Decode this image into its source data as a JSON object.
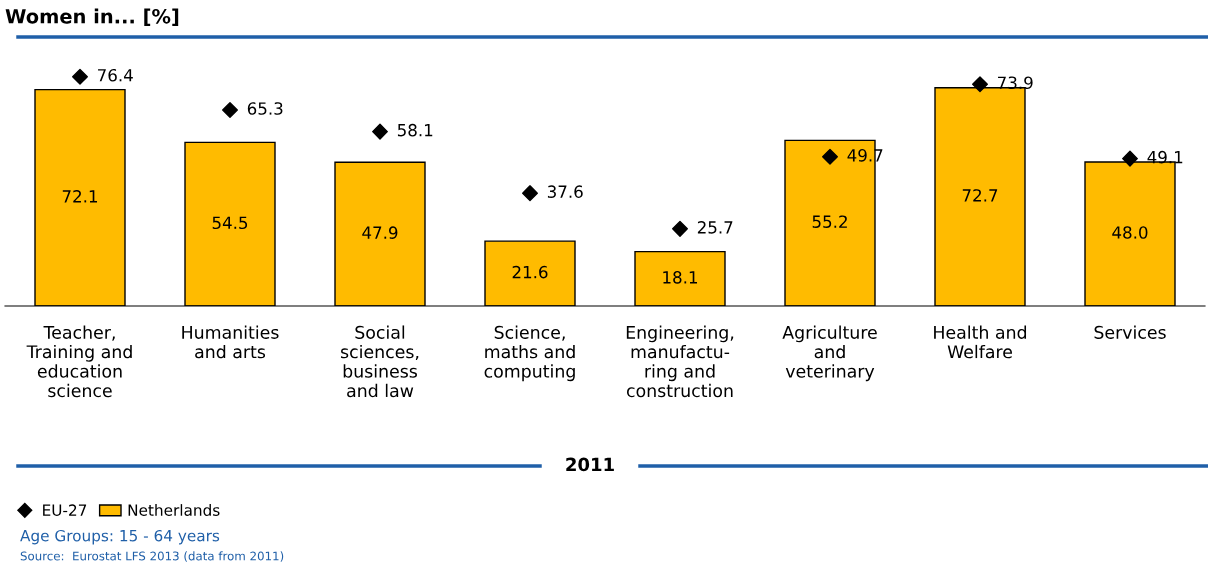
{
  "chart_data": {
    "type": "bar",
    "title": "Women in... [%]",
    "categories": [
      "Teacher,\nTraining and\neducation\nscience",
      "Humanities\nand arts",
      "Social\nsciences,\nbusiness\nand law",
      "Science,\nmaths and\ncomputing",
      "Engineering,\nmanufactu-\nring and\nconstruction",
      "Agriculture\nand\nveterinary",
      "Health and\nWelfare",
      "Services"
    ],
    "series": [
      {
        "name": "Netherlands",
        "color": "#ffbb00",
        "values": [
          72.1,
          54.5,
          47.9,
          21.6,
          18.1,
          55.2,
          72.7,
          48.0
        ],
        "value_labels": [
          "72.1",
          "54.5",
          "47.9",
          "21.6",
          "18.1",
          "55.2",
          "72.7",
          "48.0"
        ]
      },
      {
        "name": "EU-27",
        "type": "scatter",
        "color": "#000000",
        "values": [
          76.4,
          65.3,
          58.1,
          37.6,
          25.7,
          49.7,
          73.9,
          49.1
        ],
        "value_labels": [
          "76.4",
          "65.3",
          "58.1",
          "37.6",
          "25.7",
          "49.7",
          "73.9",
          "49.1"
        ]
      }
    ],
    "marker": "diamond",
    "tick_labels": "x",
    "grid": false,
    "legend": "bottom left",
    "annotations": [
      "2011",
      "Age Groups: 15 - 64 years",
      "Source:  Eurostat LFS 2013 (data from 2011)"
    ]
  }
}
